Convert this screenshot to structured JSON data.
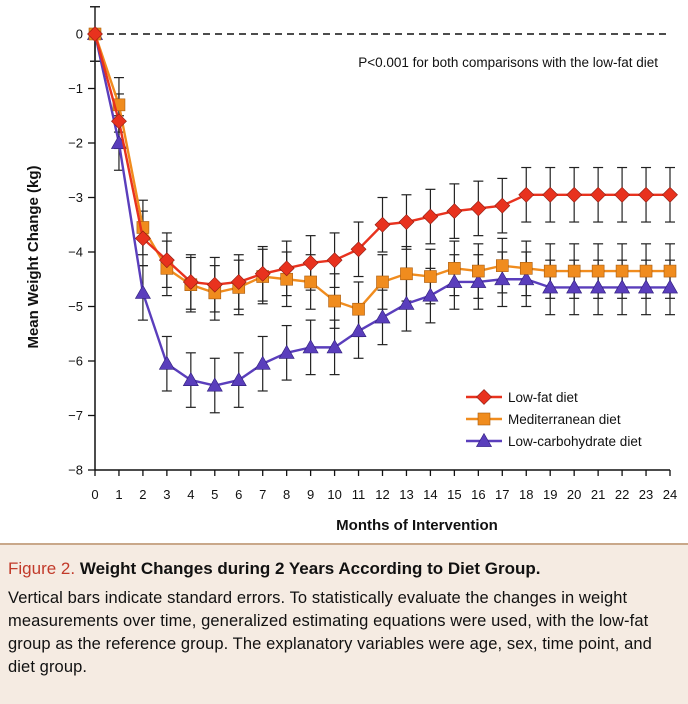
{
  "chart_data": {
    "type": "line",
    "xlabel": "Months of Intervention",
    "ylabel": "Mean Weight Change (kg)",
    "xlim": [
      0,
      24
    ],
    "ylim": [
      -8,
      0
    ],
    "x_ticks": [
      0,
      1,
      2,
      3,
      4,
      5,
      6,
      7,
      8,
      9,
      10,
      11,
      12,
      13,
      14,
      15,
      16,
      17,
      18,
      19,
      20,
      21,
      22,
      23,
      24
    ],
    "y_ticks": [
      0,
      -1,
      -2,
      -3,
      -4,
      -5,
      -6,
      -7,
      -8
    ],
    "y_tick_labels": [
      "0",
      "−1",
      "−2",
      "−3",
      "−4",
      "−5",
      "−6",
      "−7",
      "−8"
    ],
    "reference_line": 0,
    "annotation": "P<0.001 for both comparisons with the low-fat diet",
    "legend_position": "lower-right",
    "x": [
      0,
      1,
      2,
      3,
      4,
      5,
      6,
      7,
      8,
      9,
      10,
      11,
      12,
      13,
      14,
      15,
      16,
      17,
      18,
      19,
      20,
      21,
      22,
      23,
      24
    ],
    "series": [
      {
        "name": "Low-fat diet",
        "color": "#e8321e",
        "marker": "diamond",
        "values": [
          0,
          -1.6,
          -3.75,
          -4.15,
          -4.55,
          -4.6,
          -4.55,
          -4.4,
          -4.3,
          -4.2,
          -4.15,
          -3.95,
          -3.5,
          -3.45,
          -3.35,
          -3.25,
          -3.2,
          -3.15,
          -2.95,
          -2.95,
          -2.95,
          -2.95,
          -2.95,
          -2.95,
          -2.95
        ],
        "errors": [
          0.5,
          0.5,
          0.5,
          0.5,
          0.5,
          0.5,
          0.5,
          0.5,
          0.5,
          0.5,
          0.5,
          0.5,
          0.5,
          0.5,
          0.5,
          0.5,
          0.5,
          0.5,
          0.5,
          0.5,
          0.5,
          0.5,
          0.5,
          0.5,
          0.5
        ]
      },
      {
        "name": "Mediterranean diet",
        "color": "#f08c1e",
        "marker": "square",
        "values": [
          0,
          -1.3,
          -3.55,
          -4.3,
          -4.6,
          -4.75,
          -4.65,
          -4.45,
          -4.5,
          -4.55,
          -4.9,
          -5.05,
          -4.55,
          -4.4,
          -4.45,
          -4.3,
          -4.35,
          -4.25,
          -4.3,
          -4.35,
          -4.35,
          -4.35,
          -4.35,
          -4.35,
          -4.35
        ],
        "errors": [
          0.5,
          0.5,
          0.5,
          0.5,
          0.5,
          0.5,
          0.5,
          0.5,
          0.5,
          0.5,
          0.5,
          0.5,
          0.5,
          0.5,
          0.5,
          0.5,
          0.5,
          0.5,
          0.5,
          0.5,
          0.5,
          0.5,
          0.5,
          0.5,
          0.5
        ]
      },
      {
        "name": "Low-carbohydrate diet",
        "color": "#5a3ebc",
        "marker": "triangle",
        "values": [
          0,
          -2.0,
          -4.75,
          -6.05,
          -6.35,
          -6.45,
          -6.35,
          -6.05,
          -5.85,
          -5.75,
          -5.75,
          -5.45,
          -5.2,
          -4.95,
          -4.8,
          -4.55,
          -4.55,
          -4.5,
          -4.5,
          -4.65,
          -4.65,
          -4.65,
          -4.65,
          -4.65,
          -4.65
        ],
        "errors": [
          0.5,
          0.5,
          0.5,
          0.5,
          0.5,
          0.5,
          0.5,
          0.5,
          0.5,
          0.5,
          0.5,
          0.5,
          0.5,
          0.5,
          0.5,
          0.5,
          0.5,
          0.5,
          0.5,
          0.5,
          0.5,
          0.5,
          0.5,
          0.5,
          0.5
        ]
      }
    ]
  },
  "caption": {
    "label": "Figure 2.",
    "title": "Weight Changes during 2 Years According to Diet Group.",
    "body": "Vertical bars indicate standard errors. To statistically evaluate the changes in weight measurements over time, generalized estimating equations were used, with the low-fat group as the reference group. The explanatory variables were age, sex, time point, and diet group."
  }
}
